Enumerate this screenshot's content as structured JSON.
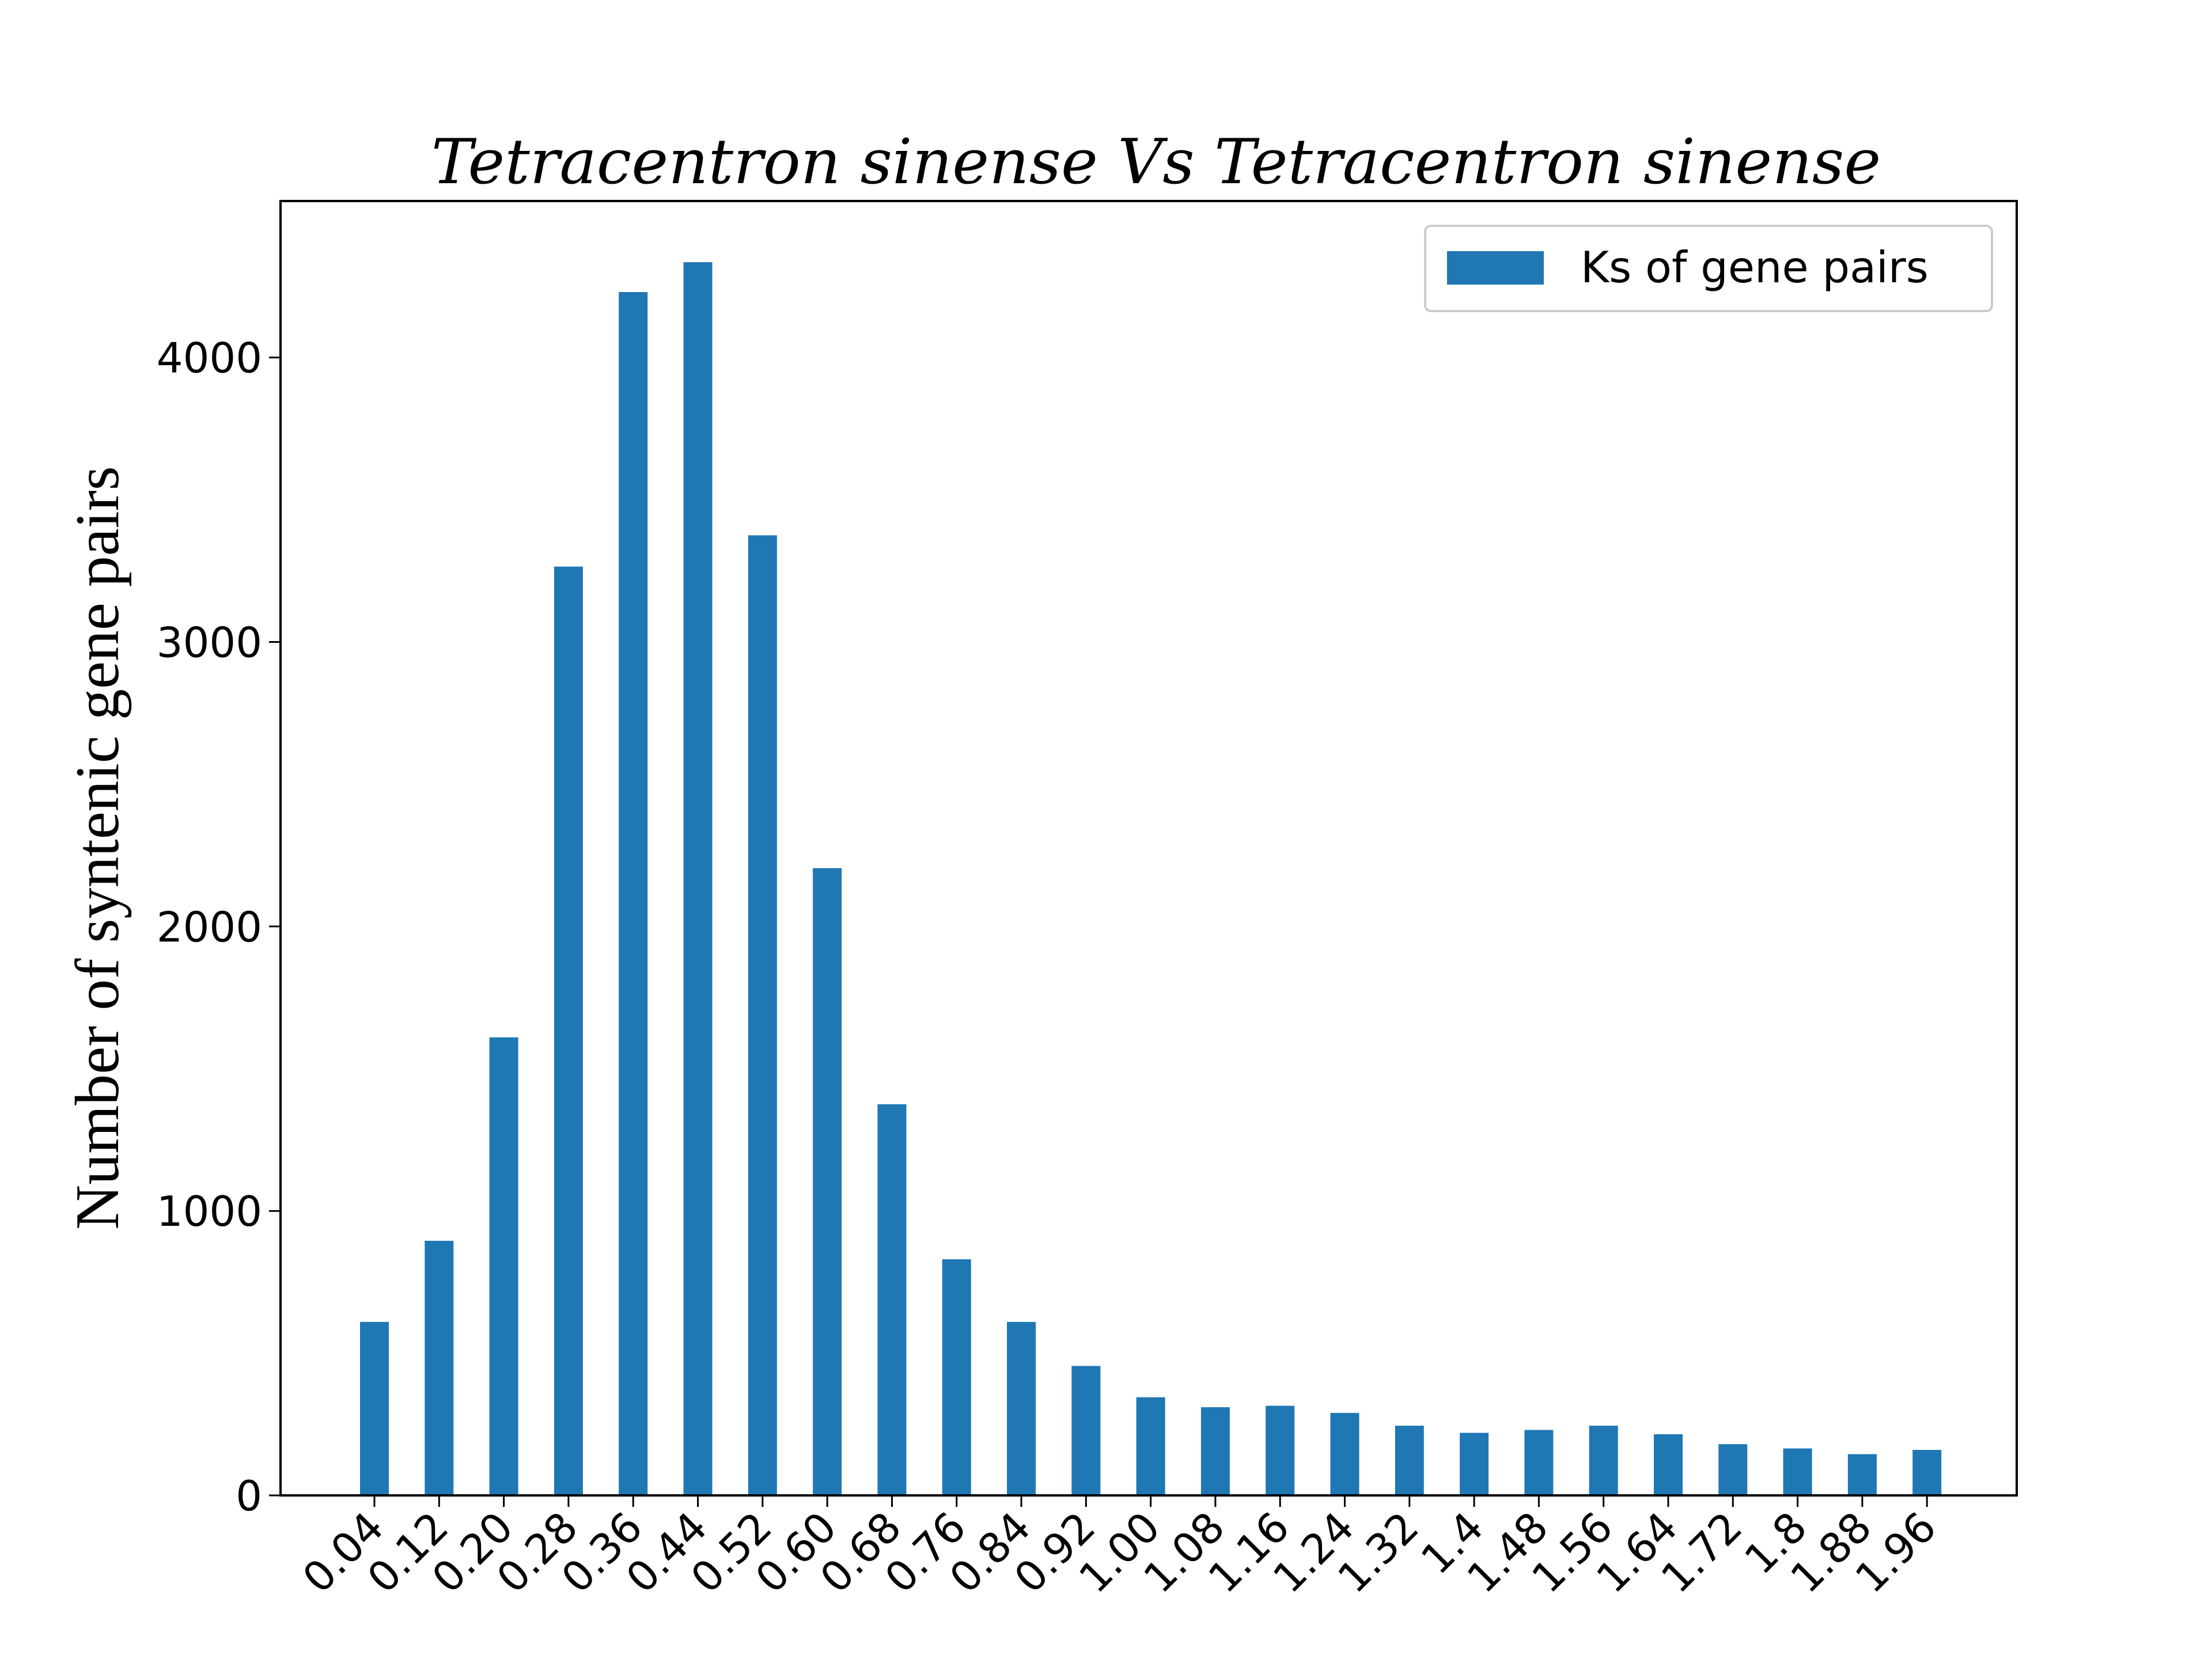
{
  "chart_data": {
    "type": "bar",
    "title": "Tetracentron sinense Vs Tetracentron sinense",
    "xlabel": "",
    "ylabel": "Number of syntenic gene pairs",
    "categories": [
      "0.04",
      "0.12",
      "0.20",
      "0.28",
      "0.36",
      "0.44",
      "0.52",
      "0.60",
      "0.68",
      "0.76",
      "0.84",
      "0.92",
      "1.00",
      "1.08",
      "1.16",
      "1.24",
      "1.32",
      "1.4",
      "1.48",
      "1.56",
      "1.64",
      "1.72",
      "1.8",
      "1.88",
      "1.96"
    ],
    "series": [
      {
        "name": "Ks of gene pairs",
        "color": "#1f77b4",
        "values": [
          610,
          895,
          1610,
          3265,
          4230,
          4335,
          3375,
          2205,
          1375,
          830,
          610,
          455,
          345,
          310,
          315,
          290,
          245,
          220,
          230,
          245,
          215,
          180,
          165,
          145,
          160
        ]
      }
    ],
    "ylim": [
      0,
      4550
    ],
    "yticks": [
      0,
      1000,
      2000,
      3000,
      4000
    ],
    "ytick_labels": [
      "0",
      "1000",
      "2000",
      "3000",
      "4000"
    ],
    "grid": false,
    "legend_position": "upper right"
  }
}
